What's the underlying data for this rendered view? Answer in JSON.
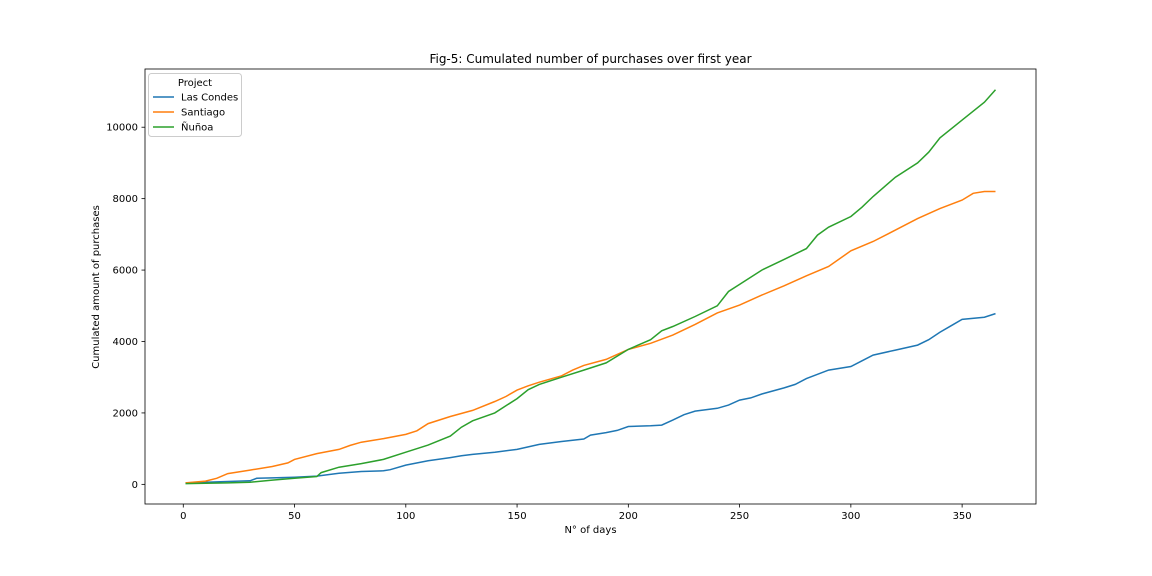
{
  "chart_data": {
    "type": "line",
    "title": "Fig-5: Cumulated number of purchases over first year",
    "xlabel": "N° of days",
    "ylabel": "Cumulated amount of purchases",
    "xlim": [
      -17.2,
      383.2
    ],
    "ylim": [
      -550,
      11630
    ],
    "xticks": [
      0,
      50,
      100,
      150,
      200,
      250,
      300,
      350
    ],
    "yticks": [
      0,
      2000,
      4000,
      6000,
      8000,
      10000
    ],
    "grid": false,
    "legend": {
      "title": "Project",
      "placement": "top-left"
    },
    "series": [
      {
        "name": "Las Condes",
        "color": "#1f77b4",
        "x": [
          1,
          10,
          20,
          30,
          33,
          40,
          50,
          60,
          70,
          80,
          90,
          93,
          100,
          110,
          120,
          125,
          130,
          140,
          150,
          155,
          160,
          170,
          180,
          183,
          190,
          195,
          200,
          210,
          215,
          220,
          225,
          230,
          240,
          245,
          250,
          255,
          260,
          270,
          275,
          280,
          290,
          300,
          305,
          310,
          320,
          330,
          335,
          340,
          345,
          350,
          360,
          365
        ],
        "y": [
          40,
          60,
          80,
          100,
          170,
          180,
          200,
          230,
          310,
          360,
          380,
          410,
          540,
          660,
          750,
          800,
          840,
          900,
          980,
          1050,
          1120,
          1200,
          1270,
          1380,
          1450,
          1510,
          1620,
          1640,
          1660,
          1800,
          1950,
          2050,
          2130,
          2220,
          2360,
          2420,
          2530,
          2700,
          2800,
          2960,
          3200,
          3300,
          3460,
          3620,
          3760,
          3900,
          4050,
          4260,
          4440,
          4620,
          4680,
          4780
        ]
      },
      {
        "name": "Santiago",
        "color": "#ff7f0e",
        "x": [
          1,
          10,
          15,
          20,
          30,
          40,
          47,
          50,
          60,
          70,
          75,
          80,
          90,
          100,
          105,
          110,
          120,
          130,
          140,
          145,
          150,
          155,
          160,
          170,
          175,
          180,
          190,
          200,
          210,
          220,
          230,
          240,
          250,
          260,
          270,
          280,
          290,
          300,
          310,
          320,
          330,
          340,
          350,
          355,
          360,
          365
        ],
        "y": [
          40,
          90,
          170,
          300,
          400,
          500,
          600,
          700,
          860,
          980,
          1090,
          1180,
          1280,
          1400,
          1500,
          1700,
          1900,
          2070,
          2320,
          2460,
          2640,
          2760,
          2860,
          3040,
          3200,
          3330,
          3500,
          3780,
          3950,
          4180,
          4480,
          4800,
          5020,
          5300,
          5560,
          5840,
          6100,
          6540,
          6800,
          7120,
          7440,
          7720,
          7960,
          8150,
          8200,
          8200
        ]
      },
      {
        "name": "Ñuñoa",
        "color": "#2ca02c",
        "x": [
          1,
          10,
          20,
          30,
          40,
          50,
          60,
          62,
          70,
          80,
          90,
          100,
          110,
          120,
          125,
          130,
          140,
          150,
          155,
          160,
          170,
          180,
          190,
          200,
          210,
          215,
          220,
          230,
          240,
          245,
          250,
          260,
          270,
          280,
          285,
          290,
          300,
          305,
          310,
          320,
          330,
          335,
          340,
          350,
          360,
          365
        ],
        "y": [
          20,
          30,
          40,
          60,
          120,
          170,
          220,
          330,
          480,
          580,
          700,
          900,
          1100,
          1350,
          1600,
          1780,
          2000,
          2400,
          2650,
          2800,
          3000,
          3200,
          3400,
          3780,
          4050,
          4300,
          4420,
          4700,
          5000,
          5400,
          5600,
          6000,
          6300,
          6600,
          6980,
          7200,
          7500,
          7760,
          8060,
          8600,
          9000,
          9300,
          9700,
          10200,
          10700,
          11050
        ]
      }
    ]
  }
}
